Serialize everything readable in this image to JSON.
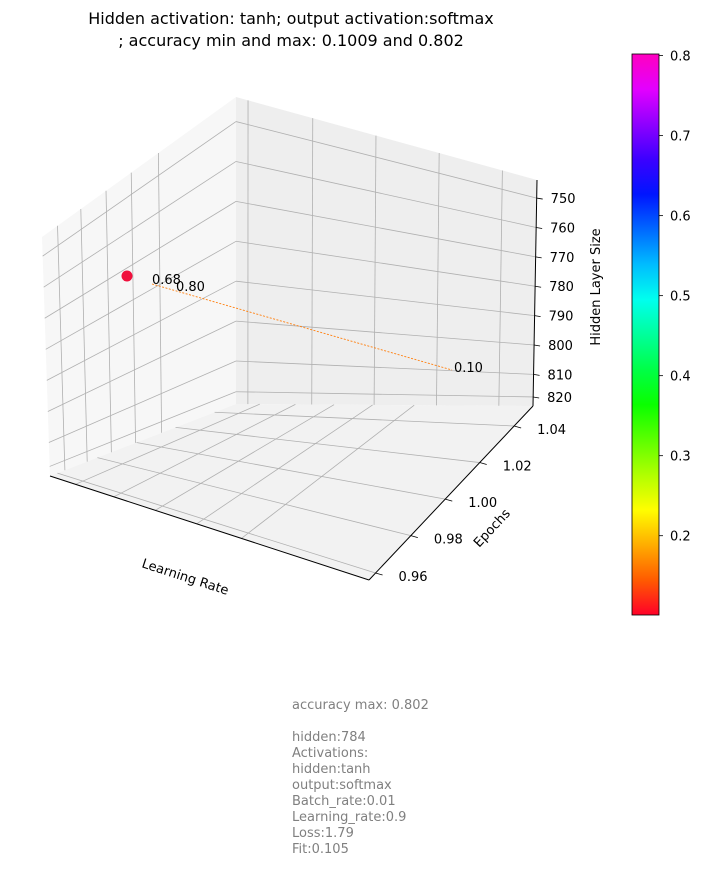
{
  "chart_data": {
    "type": "scatter",
    "title_lines": [
      "Hidden activation: tanh; output activation:softmax",
      "; accuracy min and max: 0.1009 and 0.802"
    ],
    "xlabel": "Learning Rate",
    "ylabel": "Epochs",
    "zlabel": "Hidden Layer Size",
    "y_ticks": [
      "0.96",
      "0.98",
      "1.00",
      "1.02",
      "1.04"
    ],
    "z_ticks": [
      "750",
      "760",
      "770",
      "780",
      "790",
      "800",
      "810",
      "820"
    ],
    "points": [
      {
        "accuracy": 0.802,
        "color": "#f0103c"
      }
    ],
    "annotations": [
      "0.68",
      "0.80",
      "0.10"
    ],
    "colorbar": {
      "min": 0.1009,
      "max": 0.802,
      "ticks": [
        "0.2",
        "0.3",
        "0.4",
        "0.5",
        "0.6",
        "0.7",
        "0.8"
      ],
      "colormap": "gist_rainbow",
      "stops": [
        "#ff0028",
        "#ff5b00",
        "#ffad00",
        "#fffe00",
        "#b0ff00",
        "#5cff00",
        "#0aff00",
        "#00ff47",
        "#00ff9b",
        "#00ffee",
        "#00bcff",
        "#0068ff",
        "#0015ff",
        "#3c00ff",
        "#8f00ff",
        "#e300ff",
        "#ff00bf"
      ]
    },
    "grid": true
  },
  "info_lines": [
    "accuracy max: 0.802",
    "",
    "hidden:784",
    "Activations:",
    "hidden:tanh",
    "output:softmax",
    "Batch_rate:0.01",
    "Learning_rate:0.9",
    "Loss:1.79",
    "Fit:0.105"
  ],
  "colors": {
    "pane_fill": "#f2f2f2",
    "grid": "#b0b0b0",
    "line": "#ff7f0e",
    "info_text": "#808080"
  }
}
